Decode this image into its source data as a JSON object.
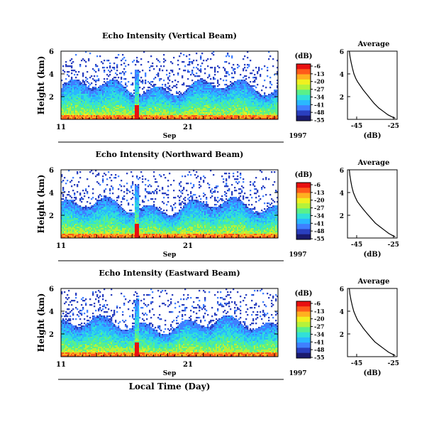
{
  "figure": {
    "xlabel_bottom": "Local Time (Day)"
  },
  "colorbar": {
    "unit_label": "(dB)",
    "ticks": [
      "-6",
      "-13",
      "-20",
      "-27",
      "-34",
      "-41",
      "-48",
      "-55"
    ],
    "colors": [
      "#1a1a6e",
      "#2a3fbf",
      "#3f7fff",
      "#2ab8ff",
      "#31e0d8",
      "#59f08a",
      "#b5f23a",
      "#f0f020",
      "#ffb020",
      "#ff5a1a",
      "#e81010"
    ]
  },
  "chart_data": [
    {
      "type": "heatmap",
      "title": "Echo Intensity (Vertical Beam)",
      "ylabel": "Height (km)",
      "yticks": [
        "6",
        "4",
        "2"
      ],
      "ylim": [
        0,
        6
      ],
      "xticks": [
        "11",
        "21"
      ],
      "xlabel_month": "Sep",
      "xlabel_year": "1997",
      "value_label": "(dB)",
      "value_range": [
        -55,
        -6
      ]
    },
    {
      "type": "line",
      "title": "Average",
      "xlabel": "(dB)",
      "xticks": [
        "-45",
        "-25"
      ],
      "yticks": [
        "6",
        "4",
        "2"
      ],
      "x": [
        -49,
        -48.6,
        -48,
        -47.3,
        -46.5,
        -45.5,
        -44.5,
        -43.2,
        -41.5,
        -39.5,
        -37.5,
        -35.5,
        -33,
        -30.5,
        -28,
        -25.5,
        -24
      ],
      "y": [
        6.0,
        5.5,
        5.0,
        4.5,
        4.0,
        3.6,
        3.3,
        3.0,
        2.6,
        2.2,
        1.8,
        1.4,
        1.0,
        0.7,
        0.4,
        0.2,
        0.1
      ]
    },
    {
      "type": "heatmap",
      "title": "Echo Intensity (Northward Beam)",
      "ylabel": "Height (km)",
      "yticks": [
        "6",
        "4",
        "2"
      ],
      "ylim": [
        0,
        6
      ],
      "xticks": [
        "11",
        "21"
      ],
      "xlabel_month": "Sep",
      "xlabel_year": "1997",
      "value_label": "(dB)",
      "value_range": [
        -55,
        -6
      ]
    },
    {
      "type": "line",
      "title": "Average",
      "xlabel": "(dB)",
      "xticks": [
        "-45",
        "-25"
      ],
      "yticks": [
        "6",
        "4",
        "2"
      ],
      "x": [
        -49,
        -48.7,
        -48.2,
        -47.6,
        -46.8,
        -45.8,
        -44.6,
        -43.2,
        -41.3,
        -39.2,
        -37,
        -34.8,
        -32.4,
        -30,
        -27.5,
        -25.2,
        -24
      ],
      "y": [
        6.0,
        5.5,
        5.0,
        4.5,
        4.0,
        3.6,
        3.2,
        2.9,
        2.5,
        2.1,
        1.7,
        1.3,
        1.0,
        0.7,
        0.4,
        0.2,
        0.1
      ]
    },
    {
      "type": "heatmap",
      "title": "Echo Intensity (Eastward Beam)",
      "ylabel": "Height (km)",
      "yticks": [
        "6",
        "4",
        "2"
      ],
      "ylim": [
        0,
        6
      ],
      "xticks": [
        "11",
        "21"
      ],
      "xlabel_month": "Sep",
      "xlabel_year": "1997",
      "value_label": "(dB)",
      "value_range": [
        -55,
        -6
      ]
    },
    {
      "type": "line",
      "title": "Average",
      "xlabel": "(dB)",
      "xticks": [
        "-45",
        "-25"
      ],
      "yticks": [
        "6",
        "4",
        "2"
      ],
      "x": [
        -49,
        -48.7,
        -48.1,
        -47.4,
        -46.6,
        -45.6,
        -44.5,
        -43.1,
        -41.4,
        -39.4,
        -37.3,
        -35.1,
        -32.7,
        -30.2,
        -27.7,
        -25.3,
        -24
      ],
      "y": [
        6.0,
        5.5,
        5.0,
        4.5,
        4.0,
        3.6,
        3.2,
        2.9,
        2.5,
        2.1,
        1.7,
        1.3,
        1.0,
        0.7,
        0.4,
        0.2,
        0.1
      ]
    }
  ]
}
